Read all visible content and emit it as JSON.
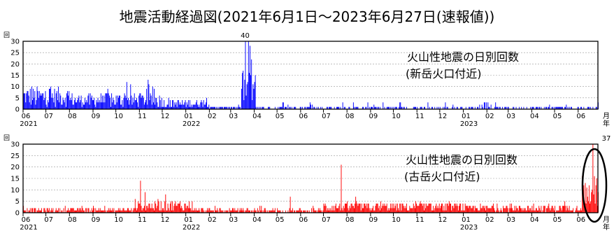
{
  "title": "地震活動経過図(2021年6月1日〜2023年6月27日(速報値))",
  "chart_data": [
    {
      "type": "bar",
      "id": "shindake",
      "label_line1": "火山性地震の日別回数",
      "label_line2": "(新岳火口付近)",
      "color": "#0000ff",
      "ylabel_unit": "回",
      "ylim": [
        0,
        30
      ],
      "yticks": [
        0,
        5,
        10,
        15,
        20,
        25,
        30
      ],
      "grid": "horizontal dotted",
      "x_start": "2021-06-01",
      "x_end": "2023-06-27",
      "month_ticks": [
        "06",
        "07",
        "08",
        "09",
        "10",
        "11",
        "12",
        "01",
        "02",
        "03",
        "04",
        "05",
        "06",
        "07",
        "08",
        "09",
        "10",
        "11",
        "12",
        "01",
        "02",
        "03",
        "04",
        "05",
        "06"
      ],
      "year_labels": [
        {
          "text": "2021",
          "at_month": 0
        },
        {
          "text": "2022",
          "at_month": 7
        },
        {
          "text": "2023",
          "at_month": 19
        }
      ],
      "axis_end_label_month": "月",
      "axis_end_label_year": "年",
      "peak_label": "40",
      "peak_value": 40,
      "segments": [
        {
          "from": "2021-06-01",
          "to": "2021-07-31",
          "base": 5.5,
          "spike": 11
        },
        {
          "from": "2021-08-01",
          "to": "2021-09-30",
          "base": 4.0,
          "spike": 8
        },
        {
          "from": "2021-10-01",
          "to": "2021-11-30",
          "base": 4.0,
          "spike": 10
        },
        {
          "from": "2021-12-01",
          "to": "2022-01-31",
          "base": 2.5,
          "spike": 5
        },
        {
          "from": "2022-02-01",
          "to": "2022-03-14",
          "base": 0.8,
          "spike": 2
        },
        {
          "from": "2022-03-15",
          "to": "2022-04-02",
          "base": 9.0,
          "spike": 16
        },
        {
          "from": "2022-04-03",
          "to": "2022-12-31",
          "base": 0.5,
          "spike": 3
        },
        {
          "from": "2023-01-01",
          "to": "2023-06-27",
          "base": 0.5,
          "spike": 3
        }
      ],
      "peaks": [
        {
          "date": "2021-06-12",
          "value": 10
        },
        {
          "date": "2021-07-05",
          "value": 9
        },
        {
          "date": "2021-09-20",
          "value": 9
        },
        {
          "date": "2021-10-15",
          "value": 12
        },
        {
          "date": "2021-11-12",
          "value": 13
        },
        {
          "date": "2021-11-20",
          "value": 9
        },
        {
          "date": "2022-03-20",
          "value": 40
        },
        {
          "date": "2022-03-24",
          "value": 30
        },
        {
          "date": "2022-03-26",
          "value": 28
        },
        {
          "date": "2022-03-28",
          "value": 22
        }
      ]
    },
    {
      "type": "bar",
      "id": "furudake",
      "label_line1": "火山性地震の日別回数",
      "label_line2": "(古岳火口付近)",
      "color": "#ff0000",
      "ylabel_unit": "回",
      "ylim": [
        0,
        30
      ],
      "yticks": [
        0,
        5,
        10,
        15,
        20,
        25,
        30
      ],
      "grid": "horizontal dotted",
      "x_start": "2021-06-01",
      "x_end": "2023-06-27",
      "month_ticks": [
        "06",
        "07",
        "08",
        "09",
        "10",
        "11",
        "12",
        "01",
        "02",
        "03",
        "04",
        "05",
        "06",
        "07",
        "08",
        "09",
        "10",
        "11",
        "12",
        "01",
        "02",
        "03",
        "04",
        "05",
        "06"
      ],
      "year_labels": [
        {
          "text": "2021",
          "at_month": 0
        },
        {
          "text": "2022",
          "at_month": 7
        },
        {
          "text": "2023",
          "at_month": 19
        }
      ],
      "axis_end_label_month": "月",
      "axis_end_label_year": "年",
      "peak_label": "37",
      "peak_value": 37,
      "segments": [
        {
          "from": "2021-06-01",
          "to": "2021-10-25",
          "base": 1.2,
          "spike": 3
        },
        {
          "from": "2021-10-26",
          "to": "2022-01-10",
          "base": 3.0,
          "spike": 7
        },
        {
          "from": "2022-01-11",
          "to": "2022-06-30",
          "base": 1.0,
          "spike": 3
        },
        {
          "from": "2022-07-01",
          "to": "2022-12-31",
          "base": 2.5,
          "spike": 5
        },
        {
          "from": "2023-01-01",
          "to": "2023-06-05",
          "base": 2.0,
          "spike": 5
        },
        {
          "from": "2023-06-06",
          "to": "2023-06-27",
          "base": 8.0,
          "spike": 16
        }
      ],
      "peaks": [
        {
          "date": "2021-11-02",
          "value": 14
        },
        {
          "date": "2021-11-08",
          "value": 9
        },
        {
          "date": "2021-12-05",
          "value": 8
        },
        {
          "date": "2022-05-18",
          "value": 7
        },
        {
          "date": "2022-07-24",
          "value": 21
        },
        {
          "date": "2022-08-12",
          "value": 7
        },
        {
          "date": "2023-06-20",
          "value": 37
        },
        {
          "date": "2023-06-22",
          "value": 16
        },
        {
          "date": "2023-06-25",
          "value": 15
        }
      ],
      "highlight": "ellipse"
    }
  ]
}
